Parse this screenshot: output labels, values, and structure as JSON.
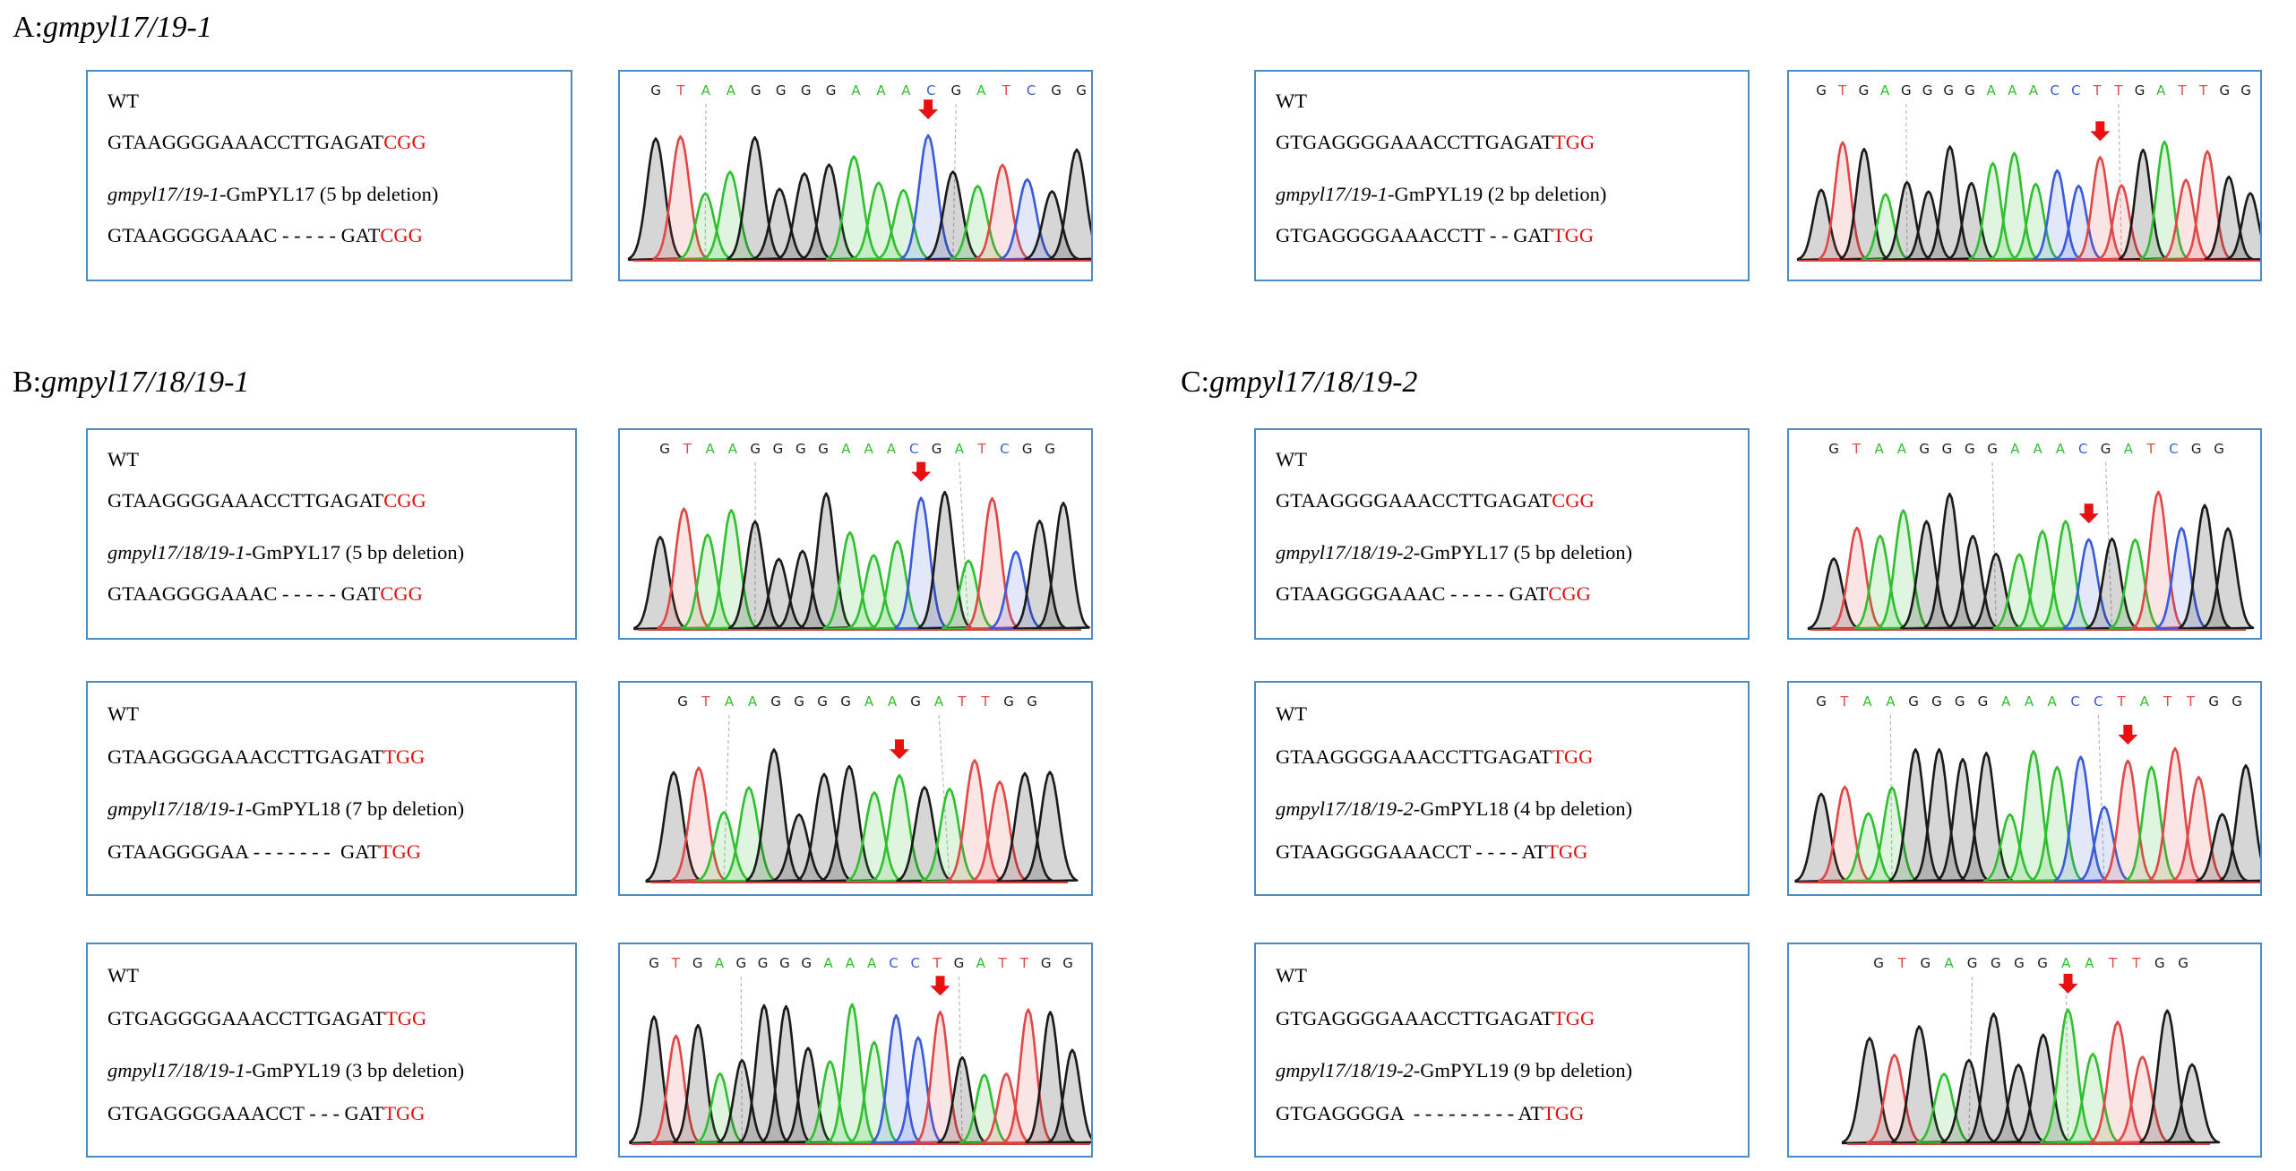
{
  "sections": [
    {
      "key": "A",
      "prefix": "A:",
      "name": "gmpyl17/19-1"
    },
    {
      "key": "B",
      "prefix": "B:",
      "name": "gmpyl17/18/19-1"
    },
    {
      "key": "C",
      "prefix": "C:",
      "name": "gmpyl17/18/19-2"
    }
  ],
  "colors": {
    "border": "#4a8cc4",
    "pam": "#dd1111",
    "A": "#2fbf2f",
    "C": "#3a5bd9",
    "G": "#1a1a1a",
    "T": "#e04848",
    "arrow": "#e81010"
  },
  "panels": [
    {
      "id": "A1",
      "wt_label": "WT",
      "wt_seq": "GTAAGGGGAAACCTTGAGAT",
      "wt_pam": "CGG",
      "mut_italic": "gmpyl17/19-1",
      "mut_rest": "-GmPYL17 (5 bp deletion)",
      "mut_seq": "GTAAGGGGAAAC - - - - - GAT",
      "mut_pam": "CGG",
      "chrom_seq": "GTAAGGGGAAACGATCGG",
      "arrow_index": 11,
      "dash_indices": [
        2,
        12
      ]
    },
    {
      "id": "A2",
      "wt_label": "WT",
      "wt_seq": "GTGAGGGGAAACCTTGAGAT",
      "wt_pam": "TGG",
      "mut_italic": "gmpyl17/19-1",
      "mut_rest": "-GmPYL19 (2 bp deletion)",
      "mut_seq": "GTGAGGGGAAACCTT - - GAT",
      "mut_pam": "TGG",
      "chrom_seq": "GTGAGGGGAAACCTTGATTGG",
      "arrow_index": 13,
      "dash_indices": [
        4,
        14
      ]
    },
    {
      "id": "B1",
      "wt_label": "WT",
      "wt_seq": "GTAAGGGGAAACCTTGAGAT",
      "wt_pam": "CGG",
      "mut_italic": "gmpyl17/18/19-1",
      "mut_rest": "-GmPYL17 (5 bp deletion)",
      "mut_seq": "GTAAGGGGAAAC - - - - - GAT",
      "mut_pam": "CGG",
      "chrom_seq": "GTAAGGGGAAACGATCGG",
      "arrow_index": 11,
      "dash_indices": [
        4,
        13
      ]
    },
    {
      "id": "B2",
      "wt_label": "WT",
      "wt_seq": "GTAAGGGGAAACCTTGAGAT",
      "wt_pam": "TGG",
      "mut_italic": "gmpyl17/18/19-1",
      "mut_rest": "-GmPYL18 (7 bp deletion)",
      "mut_seq": "GTAAGGGGAA - - - - - - -  GAT",
      "mut_pam": "TGG",
      "chrom_seq": "GTAAGGGGAAGATTGG",
      "arrow_index": 9,
      "dash_indices": [
        2,
        11
      ]
    },
    {
      "id": "B3",
      "wt_label": "WT",
      "wt_seq": "GTGAGGGGAAACCTTGAGAT",
      "wt_pam": "TGG",
      "mut_italic": "gmpyl17/18/19-1",
      "mut_rest": "-GmPYL19 (3 bp deletion)",
      "mut_seq": "GTGAGGGGAAACCT - - - GAT",
      "mut_pam": "TGG",
      "chrom_seq": "GTGAGGGGAAACCTGATTGG",
      "arrow_index": 13,
      "dash_indices": [
        4,
        14
      ]
    },
    {
      "id": "C1",
      "wt_label": "WT",
      "wt_seq": "GTAAGGGGAAACCTTGAGAT",
      "wt_pam": "CGG",
      "mut_italic": "gmpyl17/18/19-2",
      "mut_rest": "-GmPYL17 (5 bp deletion)",
      "mut_seq": "GTAAGGGGAAAC - - - - - GAT",
      "mut_pam": "CGG",
      "chrom_seq": "GTAAGGGGAAACGATCGG",
      "arrow_index": 11,
      "dash_indices": [
        7,
        12
      ]
    },
    {
      "id": "C2",
      "wt_label": "WT",
      "wt_seq": "GTAAGGGGAAACCTTGAGAT",
      "wt_pam": "TGG",
      "mut_italic": "gmpyl17/18/19-2",
      "mut_rest": "-GmPYL18 (4 bp deletion)",
      "mut_seq": "GTAAGGGGAAACCT - - - - AT",
      "mut_pam": "TGG",
      "chrom_seq": "GTAAGGGGAAACCTATTGG",
      "arrow_index": 13,
      "dash_indices": [
        3,
        12
      ]
    },
    {
      "id": "C3",
      "wt_label": "WT",
      "wt_seq": "GTGAGGGGAAACCTTGAGAT",
      "wt_pam": "TGG",
      "mut_italic": "gmpyl17/18/19-2",
      "mut_rest": "-GmPYL19 (9 bp deletion)",
      "mut_seq": "GTGAGGGGA  - - - - - - - - - AT",
      "mut_pam": "TGG",
      "chrom_seq": "GTGAGGGGAATTGG",
      "arrow_index": 8,
      "dash_indices": [
        4,
        8
      ]
    }
  ]
}
